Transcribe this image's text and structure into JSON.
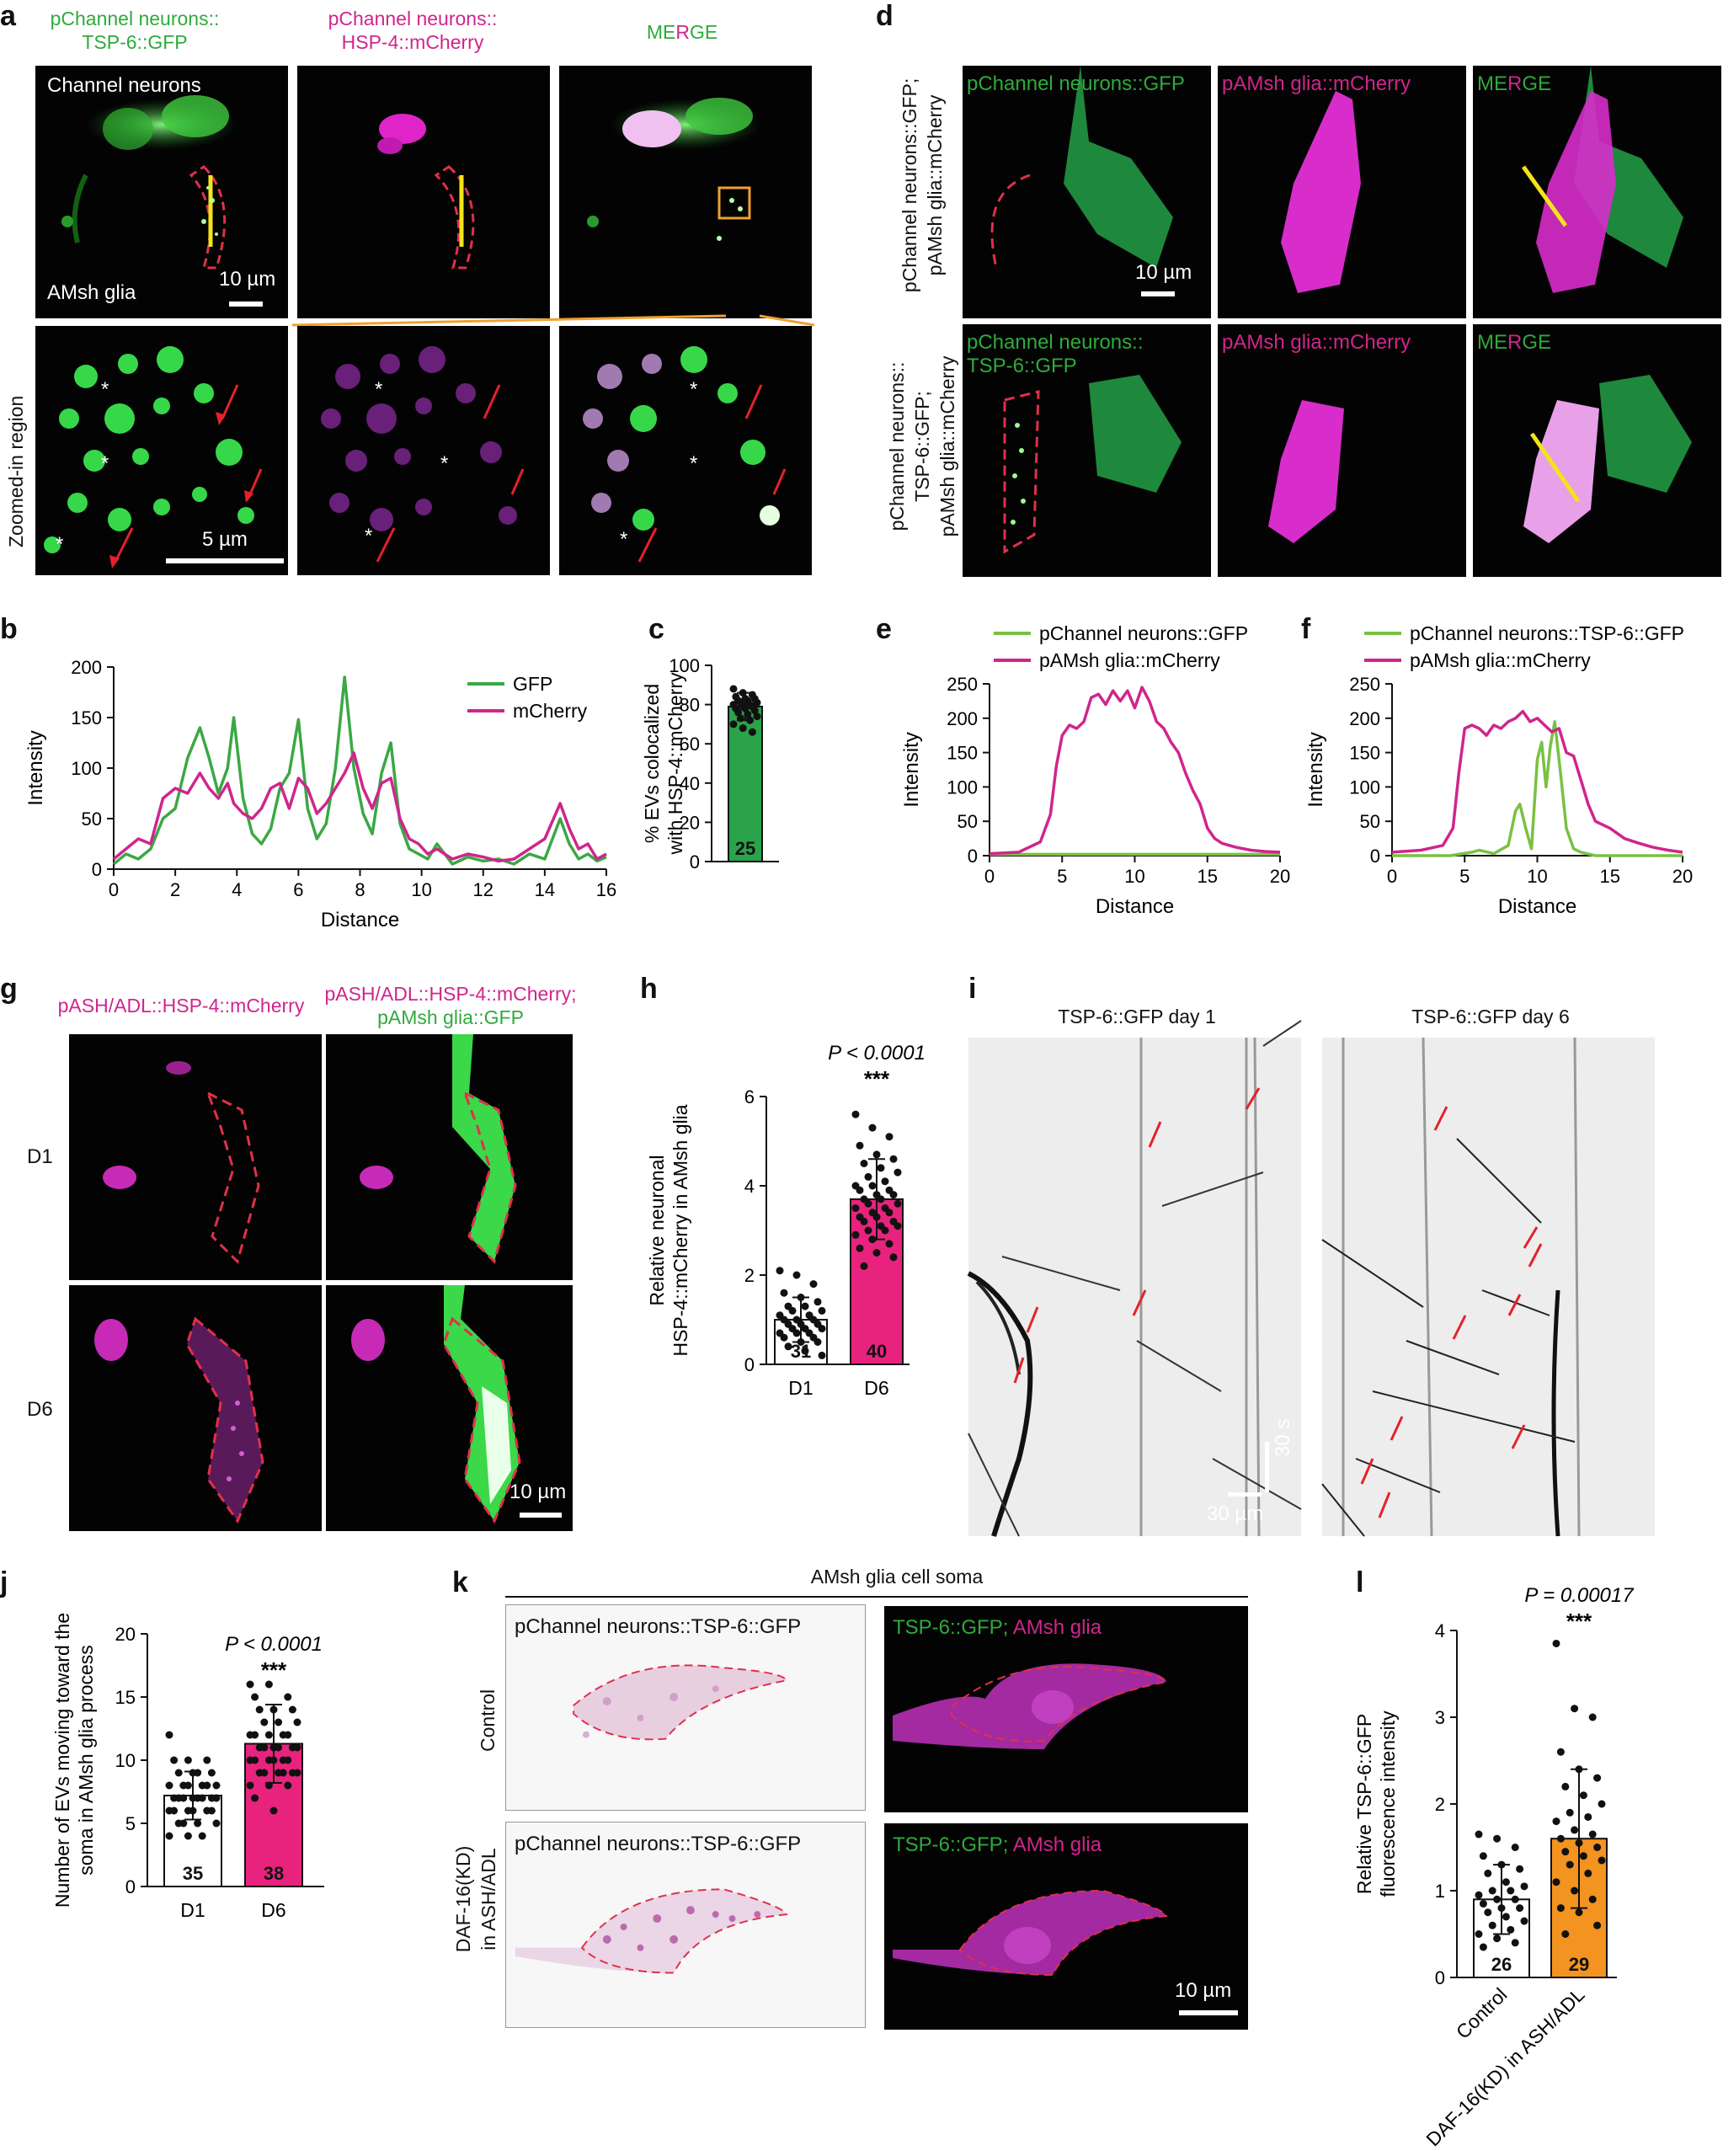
{
  "panel_letters": {
    "a": "a",
    "b": "b",
    "c": "c",
    "d": "d",
    "e": "e",
    "f": "f",
    "g": "g",
    "h": "h",
    "i": "i",
    "j": "j",
    "k": "k",
    "l": "l"
  },
  "panel_a": {
    "col1_line1": "pChannel neurons::",
    "col1_line2": "TSP-6::GFP",
    "col2_line1": "pChannel neurons::",
    "col2_line2": "HSP-4::mCherry",
    "col3_me": "ME",
    "col3_r": "R",
    "col3_g": "G",
    "col3_e": "E",
    "channel_neurons": "Channel neurons",
    "amsh_glia": "AMsh glia",
    "scale_top": "10 µm",
    "scale_bottom": "5 µm",
    "zoom_label": "Zoomed-in region",
    "star": "*"
  },
  "panel_d": {
    "row1_side_1": "pChannel neurons::GFP;",
    "row1_side_2": "pAMsh glia::mCherry",
    "row2_side_1": "pChannel neurons::",
    "row2_side_2": "TSP-6::GFP;",
    "row2_side_3": "pAMsh glia::mCherry",
    "r1_gfp": "pChannel neurons::GFP",
    "r1_mch": "pAMsh glia::mCherry",
    "r2_gfp_1": "pChannel neurons::",
    "r2_gfp_2": "TSP-6::GFP",
    "r2_mch": "pAMsh glia::mCherry",
    "me": "ME",
    "r": "R",
    "g": "G",
    "e": "E",
    "scale": "10 µm"
  },
  "panel_g": {
    "col1": "pASH/ADL::HSP-4::mCherry",
    "col2_line1": "pASH/ADL::HSP-4::mCherry;",
    "col2_line2": "pAMsh glia::GFP",
    "row1": "D1",
    "row2": "D6",
    "scale": "10 µm"
  },
  "panel_i": {
    "title1": "TSP-6::GFP day 1",
    "title2": "TSP-6::GFP  day 6",
    "scale_t": "30 s",
    "scale_x": "30 µm"
  },
  "panel_k": {
    "header": "AMsh glia cell soma",
    "tl": "pChannel neurons::TSP-6::GFP",
    "bl": "pChannel neurons::TSP-6::GFP",
    "tr_g": "TSP-6::GFP;",
    "tr_m": " AMsh glia",
    "br_g": "TSP-6::GFP;",
    "br_m": " AMsh glia",
    "row1": "Control",
    "row2_1": "DAF-16(KD)",
    "row2_2": "in ASH/ADL",
    "scale": "10 µm"
  },
  "colors": {
    "gfp": "#2faa3c",
    "mcherry": "#d0258d",
    "ev_bar": "#2aa34a",
    "d6_bar": "#e8237e",
    "daf_bar": "#f39320",
    "guide": "#f0a030",
    "yellow": "#f5e31a"
  },
  "chart_data": [
    {
      "id": "b",
      "type": "line",
      "xlabel": "Distance",
      "ylabel": "Intensity",
      "xlim": [
        0,
        16
      ],
      "ylim": [
        0,
        200
      ],
      "xticks": [
        0,
        2,
        4,
        6,
        8,
        10,
        12,
        14,
        16
      ],
      "yticks": [
        0,
        50,
        100,
        150,
        200
      ],
      "legend": "top-right",
      "series": [
        {
          "name": "GFP",
          "color": "#3aa845",
          "x": [
            0,
            0.4,
            0.8,
            1.2,
            1.6,
            2,
            2.4,
            2.8,
            3.1,
            3.4,
            3.7,
            3.9,
            4.2,
            4.5,
            4.8,
            5.1,
            5.4,
            5.7,
            6,
            6.3,
            6.6,
            6.9,
            7.2,
            7.5,
            7.8,
            8.1,
            8.4,
            8.7,
            9,
            9.3,
            9.6,
            9.9,
            10.2,
            10.5,
            11,
            11.5,
            12,
            12.5,
            13,
            13.5,
            14,
            14.5,
            14.8,
            15.1,
            15.4,
            15.7,
            16
          ],
          "y": [
            5,
            15,
            10,
            20,
            50,
            60,
            110,
            140,
            110,
            75,
            100,
            150,
            70,
            35,
            25,
            40,
            80,
            95,
            148,
            60,
            30,
            45,
            100,
            190,
            100,
            55,
            35,
            95,
            125,
            45,
            20,
            15,
            10,
            25,
            5,
            12,
            8,
            10,
            5,
            15,
            10,
            50,
            25,
            10,
            15,
            8,
            12
          ]
        },
        {
          "name": "mCherry",
          "color": "#d0258d",
          "x": [
            0,
            0.4,
            0.8,
            1.2,
            1.6,
            2,
            2.4,
            2.8,
            3.1,
            3.4,
            3.7,
            3.9,
            4.2,
            4.5,
            4.8,
            5.1,
            5.4,
            5.7,
            6,
            6.3,
            6.6,
            6.9,
            7.2,
            7.5,
            7.8,
            8.1,
            8.4,
            8.7,
            9,
            9.3,
            9.6,
            9.9,
            10.2,
            10.5,
            11,
            11.5,
            12,
            12.5,
            13,
            13.5,
            14,
            14.5,
            14.8,
            15.1,
            15.4,
            15.7,
            16
          ],
          "y": [
            10,
            20,
            30,
            25,
            70,
            80,
            75,
            95,
            80,
            70,
            85,
            65,
            55,
            50,
            60,
            80,
            85,
            60,
            90,
            80,
            55,
            65,
            80,
            95,
            115,
            80,
            60,
            85,
            90,
            50,
            30,
            25,
            15,
            20,
            10,
            15,
            12,
            8,
            10,
            20,
            30,
            65,
            40,
            20,
            25,
            10,
            15
          ]
        }
      ]
    },
    {
      "id": "c",
      "type": "bar",
      "ylabel": "% EVs colocalized with HSP-4::mCherry",
      "ylim": [
        0,
        100
      ],
      "yticks": [
        0,
        20,
        40,
        60,
        80,
        100
      ],
      "categories": [
        ""
      ],
      "values": [
        79
      ],
      "error": [
        7
      ],
      "n": [
        "25"
      ],
      "colors": [
        "#2aa34a"
      ],
      "points": [
        88,
        86,
        85,
        84,
        83,
        83,
        82,
        82,
        81,
        81,
        80,
        80,
        79,
        79,
        78,
        78,
        77,
        76,
        75,
        74,
        73,
        72,
        70,
        68,
        66
      ]
    },
    {
      "id": "e",
      "type": "line",
      "xlabel": "Distance",
      "ylabel": "Intensity",
      "xlim": [
        0,
        20
      ],
      "ylim": [
        0,
        250
      ],
      "xticks": [
        0,
        5,
        10,
        15,
        20
      ],
      "yticks": [
        0,
        50,
        100,
        150,
        200,
        250
      ],
      "legend": "top",
      "series": [
        {
          "name": "pChannel neurons::GFP",
          "color": "#7ac142",
          "x": [
            0,
            5,
            10,
            15,
            20
          ],
          "y": [
            2,
            2,
            2,
            2,
            2
          ]
        },
        {
          "name": "pAMsh glia::mCherry",
          "color": "#d0258d",
          "x": [
            0,
            2,
            3.5,
            4.2,
            4.6,
            5,
            5.5,
            6,
            6.5,
            7,
            7.5,
            8,
            8.5,
            9,
            9.5,
            10,
            10.5,
            11,
            11.5,
            12,
            12.5,
            13,
            13.5,
            14,
            14.5,
            15,
            15.5,
            16,
            17,
            18,
            19,
            20
          ],
          "y": [
            3,
            5,
            20,
            60,
            130,
            175,
            190,
            185,
            195,
            230,
            235,
            220,
            240,
            225,
            240,
            215,
            245,
            225,
            195,
            185,
            165,
            150,
            120,
            95,
            75,
            40,
            25,
            18,
            12,
            8,
            6,
            5
          ]
        }
      ]
    },
    {
      "id": "f",
      "type": "line",
      "xlabel": "Distance",
      "ylabel": "Intensity",
      "xlim": [
        0,
        20
      ],
      "ylim": [
        0,
        250
      ],
      "xticks": [
        0,
        5,
        10,
        15,
        20
      ],
      "yticks": [
        0,
        50,
        100,
        150,
        200,
        250
      ],
      "legend": "top",
      "series": [
        {
          "name": "pChannel neurons::TSP-6::GFP",
          "color": "#7ac142",
          "x": [
            0,
            4,
            5.5,
            6,
            7,
            8,
            8.5,
            8.8,
            9.2,
            9.6,
            10,
            10.3,
            10.6,
            10.9,
            11.2,
            11.6,
            12,
            12.5,
            13,
            14,
            20
          ],
          "y": [
            0,
            0,
            5,
            8,
            3,
            15,
            65,
            75,
            40,
            10,
            140,
            165,
            100,
            160,
            195,
            120,
            40,
            10,
            5,
            0,
            0
          ]
        },
        {
          "name": "pAMsh glia::mCherry",
          "color": "#d0258d",
          "x": [
            0,
            2,
            3.5,
            4.2,
            4.6,
            5,
            5.5,
            6,
            6.5,
            7,
            7.5,
            8,
            8.5,
            9,
            9.5,
            10,
            10.5,
            11,
            11.5,
            12,
            12.5,
            13,
            13.5,
            14,
            15,
            16,
            17,
            18,
            19,
            20
          ],
          "y": [
            5,
            8,
            15,
            40,
            120,
            185,
            190,
            185,
            175,
            190,
            185,
            195,
            200,
            210,
            195,
            200,
            190,
            180,
            185,
            150,
            145,
            110,
            75,
            50,
            40,
            25,
            18,
            12,
            8,
            5
          ]
        }
      ]
    },
    {
      "id": "h",
      "type": "bar",
      "ylabel": "Relative neuronal HSP-4::mCherry in AMsh glia",
      "ylim": [
        0,
        6
      ],
      "yticks": [
        0,
        2,
        4,
        6
      ],
      "categories": [
        "D1",
        "D6"
      ],
      "values": [
        1.0,
        3.7
      ],
      "error": [
        0.5,
        0.9
      ],
      "n": [
        "31",
        "40"
      ],
      "colors": [
        "#ffffff",
        "#e8237e"
      ],
      "annotation_p": "P < 0.0001",
      "annotation_stars": "***",
      "points": [
        [
          2.1,
          2.0,
          1.8,
          1.6,
          1.5,
          1.4,
          1.3,
          1.3,
          1.2,
          1.2,
          1.1,
          1.1,
          1.0,
          1.0,
          1.0,
          0.9,
          0.9,
          0.9,
          0.8,
          0.8,
          0.8,
          0.7,
          0.7,
          0.7,
          0.6,
          0.6,
          0.5,
          0.5,
          0.4,
          0.3,
          0.2
        ],
        [
          5.6,
          5.3,
          5.1,
          4.9,
          4.7,
          4.6,
          4.5,
          4.4,
          4.3,
          4.2,
          4.1,
          4.0,
          4.0,
          3.9,
          3.9,
          3.8,
          3.8,
          3.7,
          3.7,
          3.6,
          3.6,
          3.5,
          3.5,
          3.4,
          3.4,
          3.3,
          3.3,
          3.2,
          3.2,
          3.1,
          3.1,
          3.0,
          3.0,
          2.9,
          2.8,
          2.7,
          2.6,
          2.5,
          2.4,
          2.2
        ]
      ]
    },
    {
      "id": "j",
      "type": "bar",
      "ylabel": "Number of EVs moving toward the soma in AMsh glia process",
      "ylim": [
        0,
        20
      ],
      "yticks": [
        0,
        5,
        10,
        15,
        20
      ],
      "categories": [
        "D1",
        "D6"
      ],
      "values": [
        7.2,
        11.3
      ],
      "error": [
        1.9,
        3.1
      ],
      "n": [
        "35",
        "38"
      ],
      "colors": [
        "#ffffff",
        "#e8237e"
      ],
      "annotation_p": "P < 0.0001",
      "annotation_stars": "***",
      "points": [
        [
          12,
          10,
          10,
          10,
          9,
          9,
          9,
          9,
          8,
          8,
          8,
          8,
          8,
          8,
          7,
          7,
          7,
          7,
          7,
          7,
          7,
          7,
          6,
          6,
          6,
          6,
          6,
          6,
          5,
          5,
          5,
          5,
          4,
          4,
          4
        ],
        [
          16,
          16,
          15,
          15,
          14,
          14,
          14,
          13,
          13,
          13,
          12,
          12,
          12,
          12,
          12,
          11,
          11,
          11,
          11,
          11,
          11,
          10,
          10,
          10,
          10,
          10,
          10,
          9,
          9,
          9,
          9,
          9,
          9,
          8,
          8,
          8,
          7,
          6
        ]
      ]
    },
    {
      "id": "l",
      "type": "bar",
      "ylabel": "Relative TSP-6::GFP fluorescence intensity",
      "ylim": [
        0,
        4
      ],
      "yticks": [
        0,
        1,
        2,
        3,
        4
      ],
      "categories": [
        "Control",
        "DAF-16(KD) in ASH/ADL"
      ],
      "values": [
        0.9,
        1.6
      ],
      "error": [
        0.4,
        0.8
      ],
      "n": [
        "26",
        "29"
      ],
      "colors": [
        "#ffffff",
        "#f39320"
      ],
      "annotation_p": "P = 0.00017",
      "annotation_stars": "***",
      "points": [
        [
          1.65,
          1.6,
          1.5,
          1.4,
          1.3,
          1.25,
          1.2,
          1.1,
          1.05,
          1.0,
          1.0,
          0.95,
          0.9,
          0.9,
          0.85,
          0.8,
          0.8,
          0.75,
          0.7,
          0.65,
          0.6,
          0.55,
          0.5,
          0.45,
          0.4,
          0.35
        ],
        [
          3.85,
          3.1,
          3.0,
          2.6,
          2.4,
          2.3,
          2.2,
          2.1,
          2.0,
          1.9,
          1.85,
          1.8,
          1.7,
          1.65,
          1.6,
          1.55,
          1.5,
          1.45,
          1.4,
          1.35,
          1.3,
          1.2,
          1.1,
          1.0,
          0.9,
          0.8,
          0.75,
          0.6,
          0.5
        ]
      ]
    }
  ]
}
